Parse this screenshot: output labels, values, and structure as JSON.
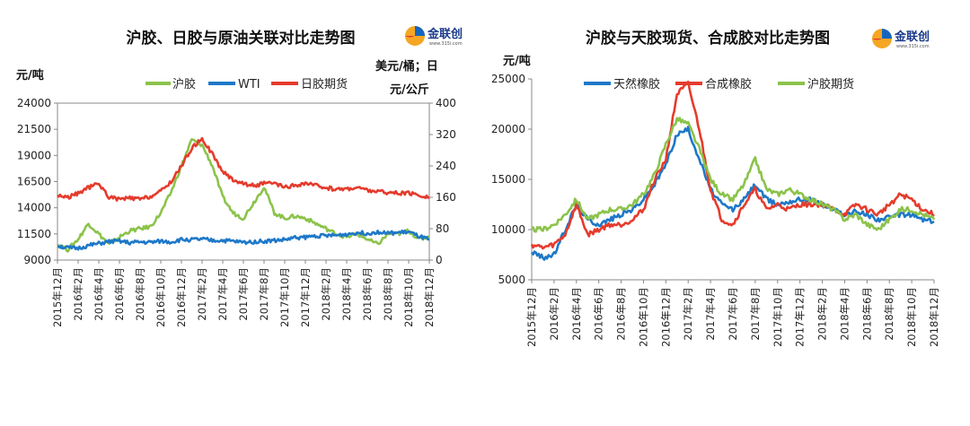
{
  "logo": {
    "text": "金联创",
    "url": "www.315i.com"
  },
  "chart_data": [
    {
      "type": "line",
      "title": "沪胶、日胶与原油关联对比走势图",
      "ylabel_left": "元/吨",
      "ylabel_right": [
        "美元/桶；日",
        "元/公斤"
      ],
      "yticks_left": [
        "24000",
        "21500",
        "19000",
        "16500",
        "14000",
        "11500",
        "9000"
      ],
      "yticks_right": [
        "400",
        "320",
        "240",
        "160",
        "80",
        "0"
      ],
      "ylim_left": [
        9000,
        24000
      ],
      "ylim_right": [
        0,
        400
      ],
      "x_range": [
        "2015-12",
        "2018-12"
      ],
      "xticks": [
        "2015年12月",
        "2016年2月",
        "2016年4月",
        "2016年6月",
        "2016年8月",
        "2016年10月",
        "2016年12月",
        "2017年2月",
        "2017年4月",
        "2017年6月",
        "2017年8月",
        "2017年10月",
        "2017年12月",
        "2018年2月",
        "2018年4月",
        "2018年6月",
        "2018年8月",
        "2018年10月",
        "2018年12月"
      ],
      "legend_position": "top",
      "series": [
        {
          "name": "沪胶",
          "axis": "left",
          "color": "#8bc34a",
          "x": [
            "2015-12",
            "2016-01",
            "2016-02",
            "2016-03",
            "2016-04",
            "2016-05",
            "2016-06",
            "2016-07",
            "2016-08",
            "2016-09",
            "2016-10",
            "2016-11",
            "2016-12",
            "2017-01",
            "2017-02",
            "2017-03",
            "2017-04",
            "2017-05",
            "2017-06",
            "2017-07",
            "2017-08",
            "2017-09",
            "2017-10",
            "2017-11",
            "2017-12",
            "2018-01",
            "2018-02",
            "2018-03",
            "2018-04",
            "2018-05",
            "2018-06",
            "2018-07",
            "2018-08",
            "2018-09",
            "2018-10",
            "2018-11",
            "2018-12"
          ],
          "y": [
            10500,
            10000,
            11000,
            12500,
            11500,
            10500,
            11200,
            11800,
            12000,
            12200,
            13500,
            15500,
            18000,
            20500,
            20000,
            18000,
            15000,
            13500,
            13000,
            14500,
            16000,
            13500,
            13000,
            13200,
            13000,
            12500,
            12000,
            11500,
            11200,
            11500,
            11000,
            10500,
            11500,
            11500,
            11800,
            11000,
            11200
          ]
        },
        {
          "name": "WTI",
          "axis": "right",
          "color": "#1e78c8",
          "x": [
            "2015-12",
            "2016-01",
            "2016-02",
            "2016-03",
            "2016-04",
            "2016-05",
            "2016-06",
            "2016-07",
            "2016-08",
            "2016-09",
            "2016-10",
            "2016-11",
            "2016-12",
            "2017-01",
            "2017-02",
            "2017-03",
            "2017-04",
            "2017-05",
            "2017-06",
            "2017-07",
            "2017-08",
            "2017-09",
            "2017-10",
            "2017-11",
            "2017-12",
            "2018-01",
            "2018-02",
            "2018-03",
            "2018-04",
            "2018-05",
            "2018-06",
            "2018-07",
            "2018-08",
            "2018-09",
            "2018-10",
            "2018-11",
            "2018-12"
          ],
          "y": [
            37,
            31,
            30,
            37,
            42,
            47,
            48,
            44,
            46,
            45,
            48,
            46,
            52,
            52,
            53,
            50,
            50,
            48,
            45,
            47,
            48,
            50,
            52,
            57,
            58,
            62,
            62,
            63,
            66,
            70,
            68,
            72,
            68,
            70,
            72,
            60,
            52
          ]
        },
        {
          "name": "日胶期货",
          "axis": "right",
          "color": "#e53b2c",
          "x": [
            "2015-12",
            "2016-01",
            "2016-02",
            "2016-03",
            "2016-04",
            "2016-05",
            "2016-06",
            "2016-07",
            "2016-08",
            "2016-09",
            "2016-10",
            "2016-11",
            "2016-12",
            "2017-01",
            "2017-02",
            "2017-03",
            "2017-04",
            "2017-05",
            "2017-06",
            "2017-07",
            "2017-08",
            "2017-09",
            "2017-10",
            "2017-11",
            "2017-12",
            "2018-01",
            "2018-02",
            "2018-03",
            "2018-04",
            "2018-05",
            "2018-06",
            "2018-07",
            "2018-08",
            "2018-09",
            "2018-10",
            "2018-11",
            "2018-12"
          ],
          "y": [
            165,
            160,
            170,
            185,
            195,
            160,
            155,
            158,
            155,
            162,
            175,
            200,
            240,
            285,
            310,
            270,
            225,
            205,
            195,
            190,
            195,
            195,
            185,
            190,
            195,
            190,
            185,
            180,
            182,
            185,
            178,
            175,
            172,
            170,
            170,
            165,
            160
          ]
        }
      ]
    },
    {
      "type": "line",
      "title": "沪胶与天胶现货、合成胶对比走势图",
      "ylabel": "元/吨",
      "yticks": [
        "25000",
        "20000",
        "15000",
        "10000",
        "5000"
      ],
      "ylim": [
        5000,
        25000
      ],
      "x_range": [
        "2015-12",
        "2018-12"
      ],
      "xticks": [
        "2015年12月",
        "2016年2月",
        "2016年4月",
        "2016年6月",
        "2016年8月",
        "2016年10月",
        "2016年12月",
        "2017年2月",
        "2017年4月",
        "2017年6月",
        "2017年8月",
        "2017年10月",
        "2017年12月",
        "2018年2月",
        "2018年4月",
        "2018年6月",
        "2018年8月",
        "2018年10月",
        "2018年12月"
      ],
      "legend_position": "top",
      "series": [
        {
          "name": "天然橡胶",
          "color": "#1e78c8",
          "x": [
            "2015-12",
            "2016-01",
            "2016-02",
            "2016-03",
            "2016-04",
            "2016-05",
            "2016-06",
            "2016-07",
            "2016-08",
            "2016-09",
            "2016-10",
            "2016-11",
            "2016-12",
            "2017-01",
            "2017-02",
            "2017-03",
            "2017-04",
            "2017-05",
            "2017-06",
            "2017-07",
            "2017-08",
            "2017-09",
            "2017-10",
            "2017-11",
            "2017-12",
            "2018-01",
            "2018-02",
            "2018-03",
            "2018-04",
            "2018-05",
            "2018-06",
            "2018-07",
            "2018-08",
            "2018-09",
            "2018-10",
            "2018-11",
            "2018-12"
          ],
          "y": [
            7800,
            7200,
            7500,
            10000,
            12500,
            11000,
            10500,
            11000,
            11500,
            12000,
            13000,
            14500,
            16500,
            19500,
            20000,
            17000,
            14000,
            12500,
            12000,
            13000,
            14500,
            13000,
            12500,
            12800,
            13000,
            13000,
            12500,
            12000,
            11500,
            11800,
            11500,
            11000,
            11200,
            11500,
            11500,
            11000,
            10800
          ]
        },
        {
          "name": "合成橡胶",
          "color": "#e53b2c",
          "x": [
            "2015-12",
            "2016-01",
            "2016-02",
            "2016-03",
            "2016-04",
            "2016-05",
            "2016-06",
            "2016-07",
            "2016-08",
            "2016-09",
            "2016-10",
            "2016-11",
            "2016-12",
            "2017-01",
            "2017-02",
            "2017-03",
            "2017-04",
            "2017-05",
            "2017-06",
            "2017-07",
            "2017-08",
            "2017-09",
            "2017-10",
            "2017-11",
            "2017-12",
            "2018-01",
            "2018-02",
            "2018-03",
            "2018-04",
            "2018-05",
            "2018-06",
            "2018-07",
            "2018-08",
            "2018-09",
            "2018-10",
            "2018-11",
            "2018-12"
          ],
          "y": [
            8500,
            8200,
            8500,
            9500,
            12500,
            9500,
            10000,
            10500,
            10500,
            11000,
            12000,
            15000,
            17000,
            23500,
            24500,
            20000,
            14000,
            11000,
            10500,
            12500,
            14000,
            12000,
            12500,
            12000,
            12500,
            12500,
            12500,
            12000,
            11500,
            12500,
            12000,
            11500,
            12500,
            13500,
            13000,
            12000,
            11500
          ]
        },
        {
          "name": "沪胶期货",
          "color": "#8bc34a",
          "x": [
            "2015-12",
            "2016-01",
            "2016-02",
            "2016-03",
            "2016-04",
            "2016-05",
            "2016-06",
            "2016-07",
            "2016-08",
            "2016-09",
            "2016-10",
            "2016-11",
            "2016-12",
            "2017-01",
            "2017-02",
            "2017-03",
            "2017-04",
            "2017-05",
            "2017-06",
            "2017-07",
            "2017-08",
            "2017-09",
            "2017-10",
            "2017-11",
            "2017-12",
            "2018-01",
            "2018-02",
            "2018-03",
            "2018-04",
            "2018-05",
            "2018-06",
            "2018-07",
            "2018-08",
            "2018-09",
            "2018-10",
            "2018-11",
            "2018-12"
          ],
          "y": [
            10000,
            10000,
            10500,
            11500,
            13000,
            11000,
            11500,
            12000,
            12000,
            12500,
            13500,
            15500,
            18500,
            21000,
            20500,
            18000,
            15000,
            13500,
            13000,
            14500,
            17000,
            14000,
            13500,
            14000,
            13500,
            13000,
            12500,
            12000,
            11000,
            11500,
            10500,
            10000,
            11000,
            12000,
            12000,
            11500,
            11000
          ]
        }
      ]
    }
  ]
}
